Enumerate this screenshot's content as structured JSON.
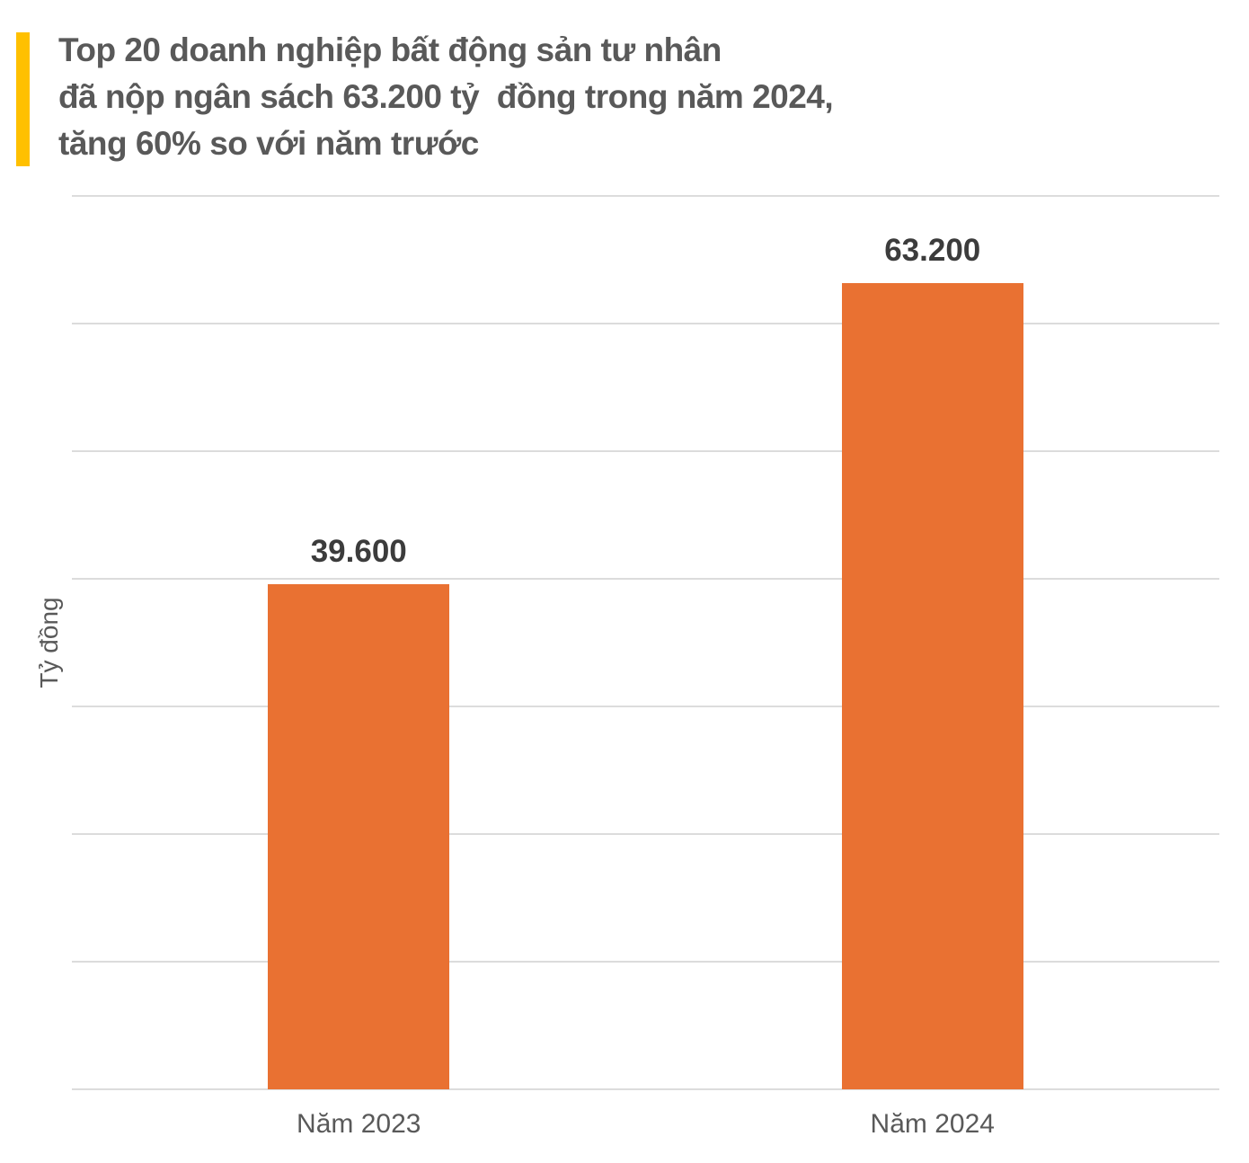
{
  "title": {
    "text": "Top 20 doanh nghiệp bất động sản tư nhân\nđã nộp ngân sách 63.200 tỷ  đồng trong năm 2024,\ntăng 60% so với năm trước"
  },
  "colors": {
    "accent_yellow": "#FFC000",
    "bar_orange": "#E97132",
    "title_gray": "#595959",
    "value_label": "#3C3C3C",
    "gridline": "#DCDCDC",
    "axis_label": "#595959"
  },
  "chart_data": {
    "type": "bar",
    "categories": [
      "Năm 2023",
      "Năm 2024"
    ],
    "values": [
      39600,
      63200
    ],
    "value_labels": [
      "39.600",
      "63.200"
    ],
    "title": "Top 20 doanh nghiệp bất động sản tư nhân đã nộp ngân sách 63.200 tỷ đồng trong năm 2024, tăng 60% so với năm trước",
    "xlabel": "",
    "ylabel": "Tỷ đồng",
    "ylim": [
      0,
      70000
    ],
    "gridline_step": 10000,
    "grid": true,
    "legend": false,
    "bar_color": "#E97132"
  }
}
